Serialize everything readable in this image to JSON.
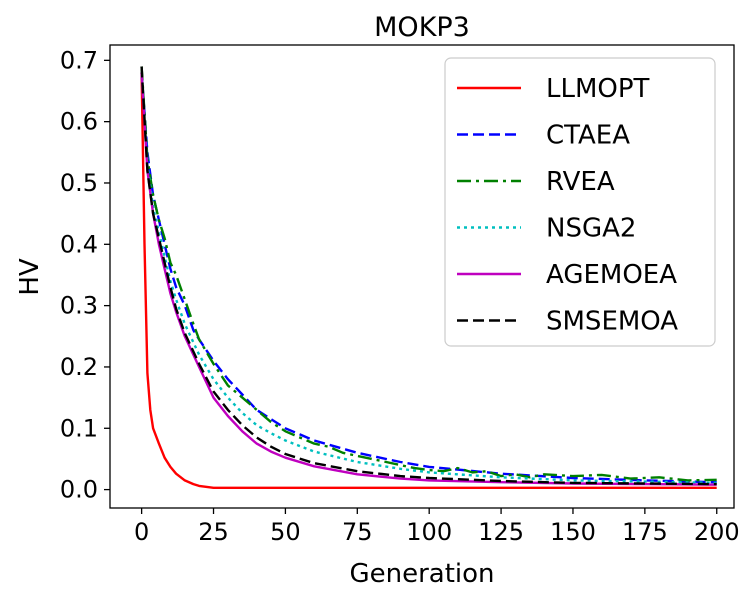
{
  "chart_data": {
    "type": "line",
    "title": "MOKP3",
    "xlabel": "Generation",
    "ylabel": "HV",
    "xlim": [
      -11,
      206
    ],
    "ylim": [
      -0.03,
      0.725
    ],
    "xticks": [
      0,
      25,
      50,
      75,
      100,
      125,
      150,
      175,
      200
    ],
    "xtick_labels": [
      "0",
      "25",
      "50",
      "75",
      "100",
      "125",
      "150",
      "175",
      "200"
    ],
    "yticks": [
      0.0,
      0.1,
      0.2,
      0.3,
      0.4,
      0.5,
      0.6,
      0.7
    ],
    "ytick_labels": [
      "0.0",
      "0.1",
      "0.2",
      "0.3",
      "0.4",
      "0.5",
      "0.6",
      "0.7"
    ],
    "grid": false,
    "legend_position": "top-right",
    "series": [
      {
        "name": "LLMOPT",
        "color": "#ff0000",
        "dash": "solid",
        "x": [
          0,
          1,
          2,
          3,
          4,
          6,
          8,
          10,
          12,
          15,
          18,
          20,
          23,
          25,
          30,
          40,
          50,
          75,
          100,
          150,
          200
        ],
        "y": [
          0.68,
          0.4,
          0.19,
          0.13,
          0.1,
          0.075,
          0.052,
          0.037,
          0.026,
          0.015,
          0.009,
          0.006,
          0.004,
          0.003,
          0.003,
          0.003,
          0.003,
          0.003,
          0.003,
          0.003,
          0.003
        ]
      },
      {
        "name": "CTAEA",
        "color": "#0000ff",
        "dash": "dashed",
        "x": [
          0,
          2,
          4,
          6,
          8,
          10,
          12,
          15,
          18,
          20,
          25,
          30,
          35,
          40,
          45,
          50,
          60,
          75,
          90,
          100,
          125,
          150,
          175,
          200
        ],
        "y": [
          0.68,
          0.55,
          0.48,
          0.44,
          0.4,
          0.36,
          0.33,
          0.3,
          0.26,
          0.245,
          0.21,
          0.18,
          0.155,
          0.13,
          0.115,
          0.1,
          0.08,
          0.06,
          0.045,
          0.037,
          0.026,
          0.019,
          0.015,
          0.012
        ]
      },
      {
        "name": "RVEA",
        "color": "#008000",
        "dash": "dashdot",
        "x": [
          0,
          2,
          4,
          6,
          8,
          10,
          12,
          15,
          18,
          20,
          25,
          30,
          35,
          40,
          45,
          50,
          55,
          60,
          65,
          70,
          75,
          80,
          85,
          90,
          95,
          100,
          105,
          110,
          115,
          120,
          125,
          130,
          135,
          140,
          150,
          160,
          170,
          180,
          190,
          200
        ],
        "y": [
          0.69,
          0.54,
          0.48,
          0.44,
          0.41,
          0.37,
          0.35,
          0.31,
          0.27,
          0.245,
          0.205,
          0.17,
          0.15,
          0.13,
          0.11,
          0.095,
          0.085,
          0.075,
          0.07,
          0.06,
          0.055,
          0.05,
          0.045,
          0.04,
          0.035,
          0.032,
          0.03,
          0.035,
          0.028,
          0.03,
          0.022,
          0.025,
          0.02,
          0.025,
          0.022,
          0.024,
          0.018,
          0.02,
          0.015,
          0.016
        ]
      },
      {
        "name": "NSGA2",
        "color": "#00bfbf",
        "dash": "dotted",
        "x": [
          0,
          2,
          4,
          6,
          8,
          10,
          12,
          15,
          18,
          20,
          25,
          30,
          35,
          40,
          45,
          50,
          60,
          75,
          90,
          100,
          125,
          150,
          175,
          200
        ],
        "y": [
          0.68,
          0.53,
          0.46,
          0.42,
          0.38,
          0.34,
          0.31,
          0.27,
          0.24,
          0.22,
          0.18,
          0.15,
          0.125,
          0.105,
          0.092,
          0.08,
          0.062,
          0.045,
          0.034,
          0.028,
          0.02,
          0.015,
          0.013,
          0.011
        ]
      },
      {
        "name": "AGEMOEA",
        "color": "#bf00bf",
        "dash": "solid",
        "x": [
          0,
          2,
          4,
          6,
          8,
          10,
          12,
          15,
          18,
          20,
          25,
          30,
          35,
          40,
          45,
          50,
          60,
          75,
          90,
          100,
          125,
          150,
          175,
          200
        ],
        "y": [
          0.68,
          0.52,
          0.45,
          0.4,
          0.36,
          0.32,
          0.29,
          0.25,
          0.22,
          0.2,
          0.15,
          0.12,
          0.095,
          0.075,
          0.062,
          0.052,
          0.038,
          0.025,
          0.018,
          0.015,
          0.012,
          0.01,
          0.009,
          0.008
        ]
      },
      {
        "name": "SMSEMOA",
        "color": "#000000",
        "dash": "dashed",
        "x": [
          0,
          2,
          4,
          6,
          8,
          10,
          12,
          15,
          18,
          20,
          25,
          30,
          35,
          40,
          45,
          50,
          60,
          75,
          90,
          100,
          125,
          150,
          175,
          200
        ],
        "y": [
          0.69,
          0.52,
          0.45,
          0.41,
          0.37,
          0.33,
          0.295,
          0.255,
          0.225,
          0.205,
          0.16,
          0.13,
          0.105,
          0.085,
          0.07,
          0.058,
          0.043,
          0.03,
          0.022,
          0.019,
          0.014,
          0.011,
          0.01,
          0.009
        ]
      }
    ]
  }
}
